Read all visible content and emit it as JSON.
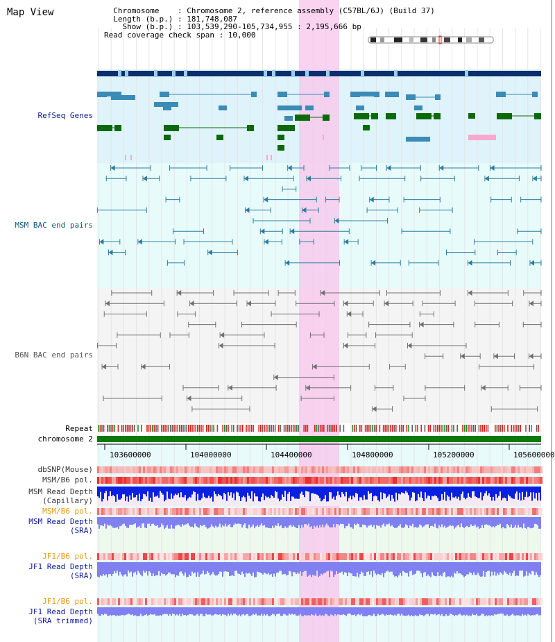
{
  "header": {
    "title": "Map View",
    "lines": [
      "  Chromosome    : Chromosome 2, reference assembly (C57BL/6J) (Build 37)",
      "  Length (b.p.) : 181,748,087",
      "    Show (b.p.) : 103,539,290-105,734,955 : 2,195,666 bp",
      "Read coverage check span : 10,000"
    ]
  },
  "tracks": {
    "refseq": "RefSeq Genes",
    "msm_bac": "MSM BAC end pairs",
    "b6n_bac": "B6N BAC end pairs",
    "repeat": "Repeat",
    "chromosome": "chromosome 2",
    "dbsnp": "dbSNP(Mouse)",
    "msm_b6_pol": "MSM/B6 pol.",
    "msm_read_cap_1": "MSM Read Depth",
    "msm_read_cap_2": "(Capillary)",
    "msm_b6_pol2": "MSM/B6 pol.",
    "msm_read_sra_1": "MSM Read Depth",
    "msm_read_sra_2": "(SRA)",
    "jf1_b6_pol": "JF1/B6 pol.",
    "jf1_read_sra_1": "JF1 Read Depth",
    "jf1_read_sra_2": "(SRA)",
    "jf1_b6_pol2": "JF1/B6 pol.",
    "jf1_read_trim_1": "JF1 Read Depth",
    "jf1_read_trim_2": "(SRA trimmed)"
  },
  "ruler": {
    "ticks": [
      "103600000",
      "104000000",
      "104400000",
      "104800000",
      "105200000",
      "105600000"
    ]
  },
  "colors": {
    "refseq_bg": "#dff3fb",
    "gene_navy": "#0a2e6e",
    "gene_blue": "#3a8bb5",
    "gene_green": "#0a6a0a",
    "highlight": "#f8c8ec",
    "chromosome": "#0a7a0a",
    "depth_blue": "#0a20e0",
    "depth_violet": "#8080f0",
    "pol_red": "#f03030"
  }
}
